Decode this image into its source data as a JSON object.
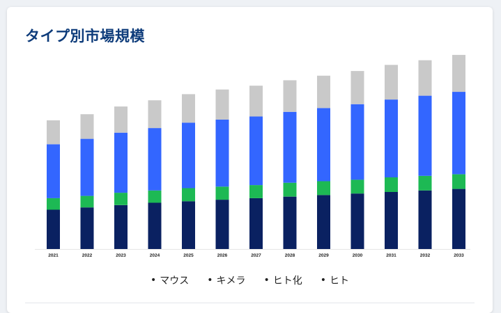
{
  "chart_data": {
    "type": "bar",
    "stacked": true,
    "title": "タイプ別市場規模",
    "categories": [
      "2021",
      "2022",
      "2023",
      "2024",
      "2025",
      "2026",
      "2027",
      "2028",
      "2029",
      "2030",
      "2031",
      "2032",
      "2033"
    ],
    "series": [
      {
        "name": "ヒト",
        "color": "#0a2161",
        "values": [
          51,
          54,
          57,
          60,
          62,
          64,
          66,
          68,
          70,
          72,
          74,
          76,
          78
        ]
      },
      {
        "name": "ヒト化",
        "color": "#1db954",
        "values": [
          15,
          15,
          16,
          16,
          17,
          17,
          17,
          18,
          18,
          18,
          19,
          19,
          19
        ]
      },
      {
        "name": "マウス",
        "color": "#3366ff",
        "values": [
          70,
          74,
          78,
          81,
          85,
          87,
          89,
          92,
          95,
          98,
          101,
          104,
          107
        ]
      },
      {
        "name": "キメラ",
        "color": "#c9c9c9",
        "values": [
          31,
          32,
          34,
          36,
          37,
          39,
          40,
          41,
          42,
          43,
          45,
          46,
          48
        ]
      }
    ],
    "legend_order": [
      "マウス",
      "キメラ",
      "ヒト化",
      "ヒト"
    ],
    "ylim": [
      0,
      260
    ],
    "grid": false,
    "legend_position": "bottom-center"
  }
}
